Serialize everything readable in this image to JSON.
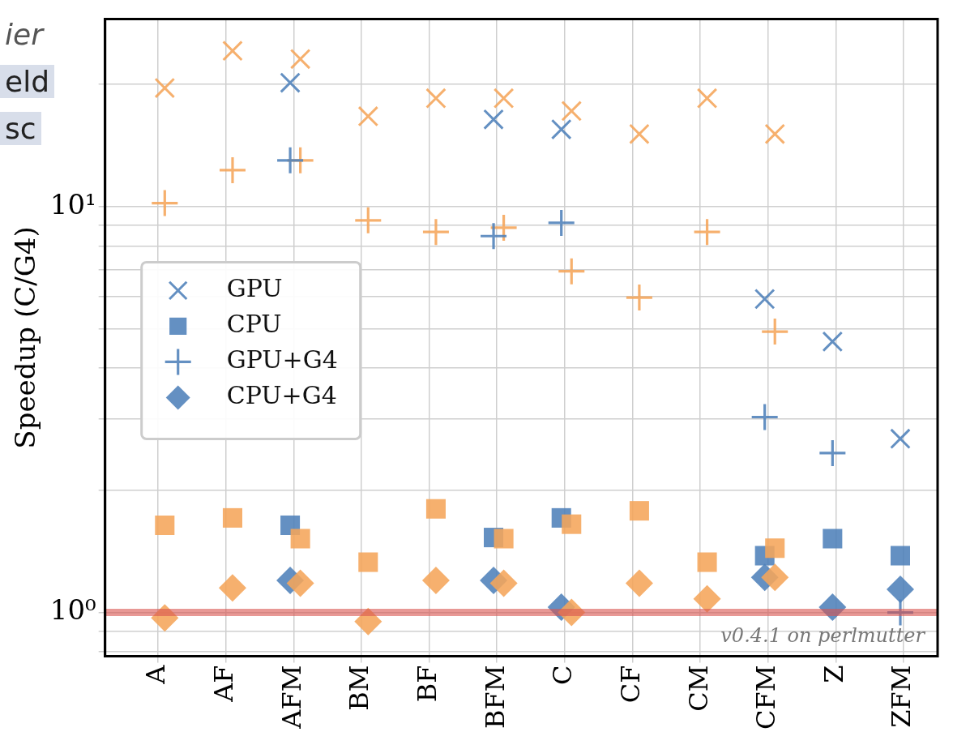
{
  "chart_data": {
    "type": "scatter",
    "ylabel": "Speedup (C/G4)",
    "log": "y",
    "grid": true,
    "legend": "left",
    "categories": [
      "A",
      "AF",
      "AFM",
      "BM",
      "BF",
      "BFM",
      "C",
      "CF",
      "CM",
      "CFM",
      "Z",
      "ZFM"
    ],
    "ylim": [
      0.78,
      29
    ],
    "yticks": [
      {
        "value": 0.8,
        "label": null
      },
      {
        "value": 0.9,
        "label": null
      },
      {
        "value": 1,
        "label": "10⁰"
      },
      {
        "value": 2,
        "label": null
      },
      {
        "value": 3,
        "label": null
      },
      {
        "value": 4,
        "label": null
      },
      {
        "value": 5,
        "label": null
      },
      {
        "value": 6,
        "label": null
      },
      {
        "value": 7,
        "label": null
      },
      {
        "value": 8,
        "label": null
      },
      {
        "value": 9,
        "label": null
      },
      {
        "value": 10,
        "label": "10¹"
      },
      {
        "value": 20,
        "label": null
      }
    ],
    "series": [
      {
        "color": "#f5a55a",
        "values": [
          19.6,
          24.2,
          23.1,
          16.7,
          18.5,
          18.5,
          17.2,
          15.1,
          18.5,
          15.1,
          null,
          null
        ]
      },
      {
        "color": "#f5a55a",
        "marker": "cross",
        "values": [
          10.2,
          12.3,
          13.0,
          9.25,
          8.66,
          8.87,
          6.93,
          5.97,
          8.66,
          4.92,
          null,
          null
        ]
      },
      {
        "color": "#f5a55a",
        "marker": "square",
        "values": [
          1.64,
          1.71,
          1.52,
          1.33,
          1.8,
          1.52,
          1.65,
          1.78,
          1.33,
          1.44,
          null,
          null
        ]
      },
      {
        "color": "#f5a55a",
        "marker": "diamond",
        "values": [
          0.97,
          1.15,
          1.18,
          0.95,
          1.2,
          1.18,
          1.0,
          1.18,
          1.08,
          1.22,
          null,
          null
        ]
      },
      {
        "name": "GPU",
        "color": "#4f81b9",
        "values": [
          null,
          null,
          20.2,
          null,
          null,
          16.4,
          15.5,
          null,
          null,
          5.92,
          4.65,
          2.68
        ]
      },
      {
        "name": "CPU",
        "color": "#4f81b9",
        "marker": "square",
        "values": [
          null,
          null,
          1.64,
          null,
          null,
          1.53,
          1.71,
          null,
          null,
          1.38,
          1.52,
          1.38
        ]
      },
      {
        "name": "GPU+G4",
        "color": "#4f81b9",
        "marker": "cross",
        "values": [
          null,
          null,
          13.0,
          null,
          null,
          8.46,
          9.12,
          null,
          null,
          3.03,
          2.47,
          1.0
        ]
      },
      {
        "name": "CPU+G4",
        "color": "#4f81b9",
        "marker": "diamond",
        "values": [
          null,
          null,
          1.2,
          null,
          null,
          1.2,
          1.03,
          null,
          null,
          1.22,
          1.03,
          1.14
        ]
      }
    ],
    "ref_lines": [
      {
        "axis": "y",
        "value": 1,
        "color": "#d9534f"
      }
    ],
    "annotations": [
      "ier",
      "eld",
      "sc",
      "v0.4.1 on perlmutter"
    ]
  }
}
